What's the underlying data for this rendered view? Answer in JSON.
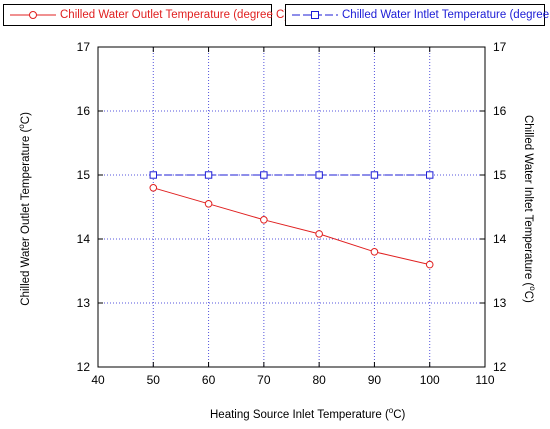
{
  "chart_data": {
    "type": "line",
    "x": [
      50,
      60,
      70,
      80,
      90,
      100
    ],
    "series": [
      {
        "name": "Chilled Water Outlet Temperature (degree C)",
        "values": [
          14.8,
          14.55,
          14.3,
          14.08,
          13.8,
          13.6
        ],
        "color": "#e02020",
        "marker": "circle",
        "axis": "left"
      },
      {
        "name": "Chilled Water Intlet Temperature (degree C)",
        "values": [
          15,
          15,
          15,
          15,
          15,
          15
        ],
        "color": "#1c1cd6",
        "marker": "square",
        "axis": "right"
      }
    ],
    "xlabel_main": "Heating Source Inlet Temperature (",
    "xlabel_sup": "o",
    "xlabel_end": "C)",
    "ylabel_left_main": "Chilled Water Outlet Temperature (",
    "ylabel_left_sup": "o",
    "ylabel_left_end": "C)",
    "ylabel_right_main": "Chilled Water Inltet Temperature (",
    "ylabel_right_sup": "o",
    "ylabel_right_end": "C)",
    "xlim": [
      40,
      110
    ],
    "ylim": [
      12,
      17
    ],
    "xticks": [
      40,
      50,
      60,
      70,
      80,
      90,
      100,
      110
    ],
    "yticks": [
      12,
      13,
      14,
      15,
      16,
      17
    ],
    "grid": true,
    "grid_color": "#5555dd",
    "legend_position": "top"
  }
}
